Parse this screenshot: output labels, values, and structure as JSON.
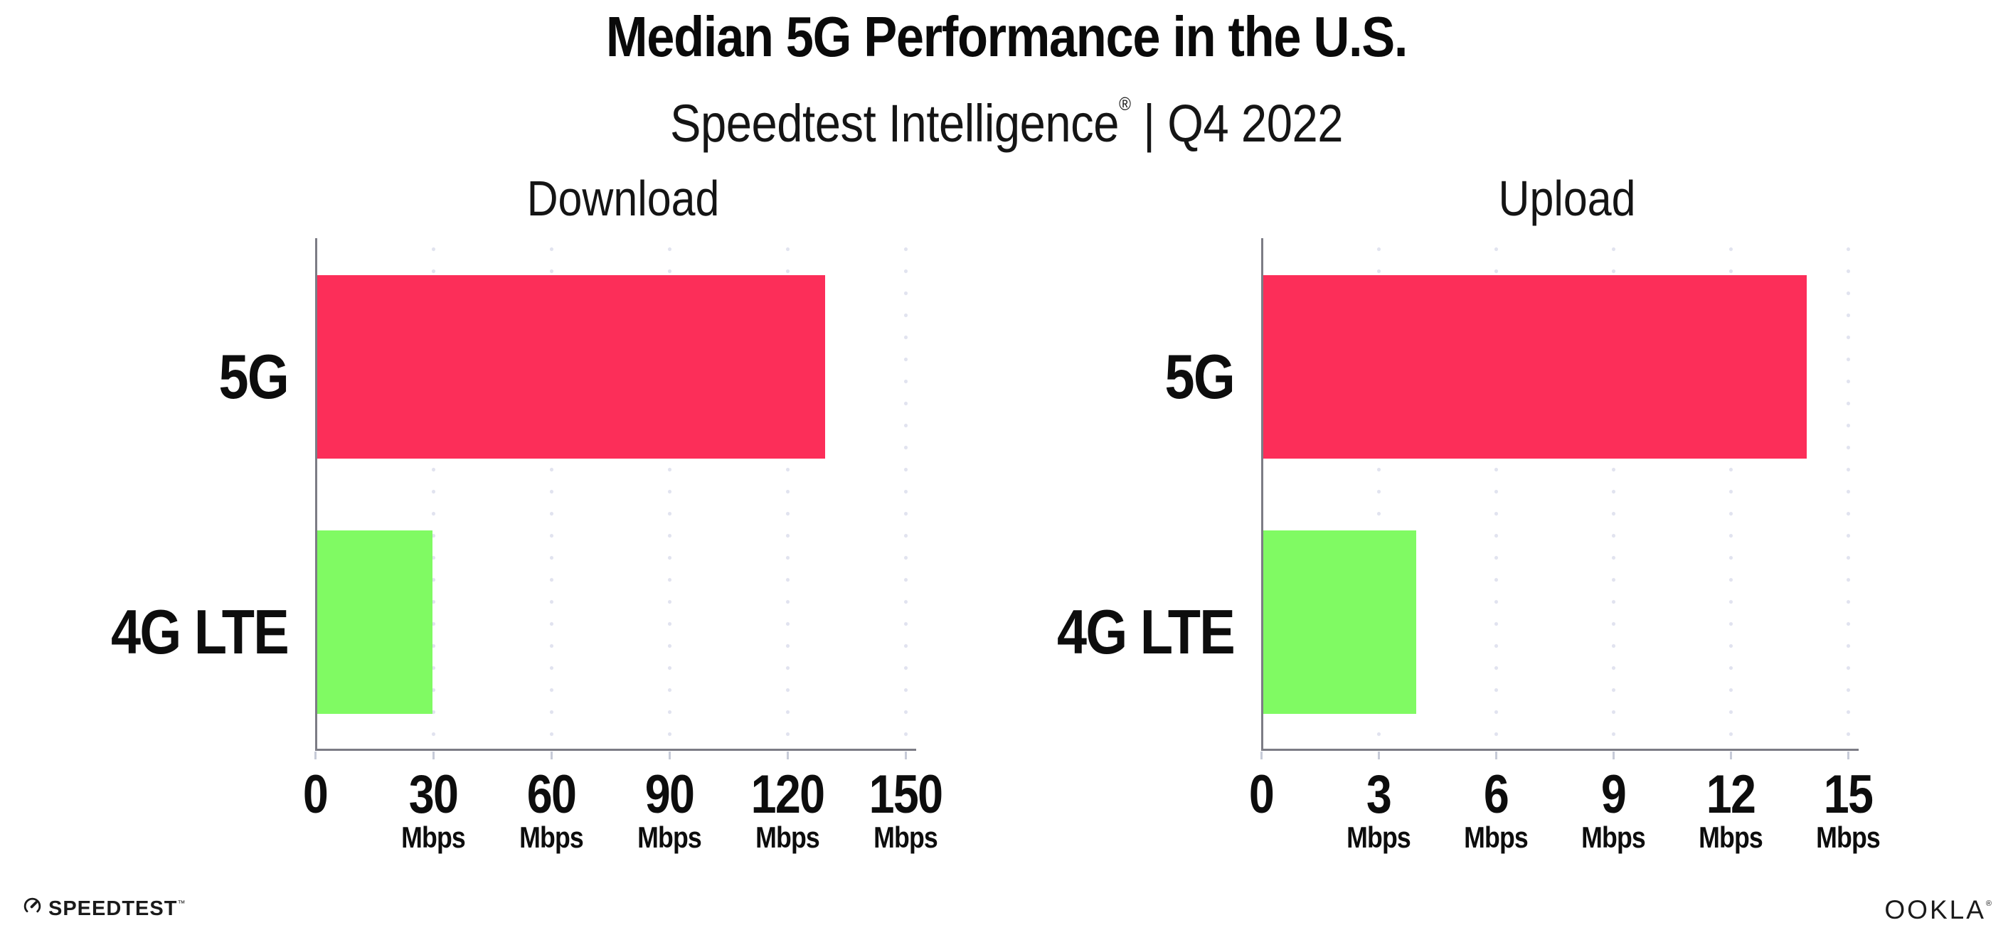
{
  "header": {
    "title": "Median 5G Performance in the U.S.",
    "subtitle_brand": "Speedtest Intelligence",
    "subtitle_mark": "®",
    "subtitle_rest": " | Q4 2022"
  },
  "colors": {
    "bar_5g": "#FC2E59",
    "bar_4g_lte": "#80FA63",
    "axis": "#7C7C85",
    "grid_dots": "#E1E3EF",
    "tick_marks": "#C7CBD8",
    "text": "#0D0D0D",
    "background": "#FFFFFF"
  },
  "chart_data": [
    {
      "type": "bar",
      "orientation": "horizontal",
      "title": "Download",
      "categories": [
        "5G",
        "4G LTE"
      ],
      "values": [
        129.5,
        29.9
      ],
      "unit": "Mbps",
      "xlim": [
        0,
        150
      ],
      "xticks": [
        0,
        30,
        60,
        90,
        120,
        150
      ],
      "grid": "dotted-vertical",
      "legend": "none",
      "bar_colors": [
        "#FC2E59",
        "#80FA63"
      ]
    },
    {
      "type": "bar",
      "orientation": "horizontal",
      "title": "Upload",
      "categories": [
        "5G",
        "4G LTE"
      ],
      "values": [
        13.95,
        3.97
      ],
      "unit": "Mbps",
      "xlim": [
        0,
        15
      ],
      "xticks": [
        0,
        3,
        6,
        9,
        12,
        15
      ],
      "grid": "dotted-vertical",
      "legend": "none",
      "bar_colors": [
        "#FC2E59",
        "#80FA63"
      ]
    }
  ],
  "footer": {
    "speedtest_label": "SPEEDTEST",
    "speedtest_mark": "™",
    "ookla_label": "OOKLA",
    "ookla_mark": "®"
  }
}
